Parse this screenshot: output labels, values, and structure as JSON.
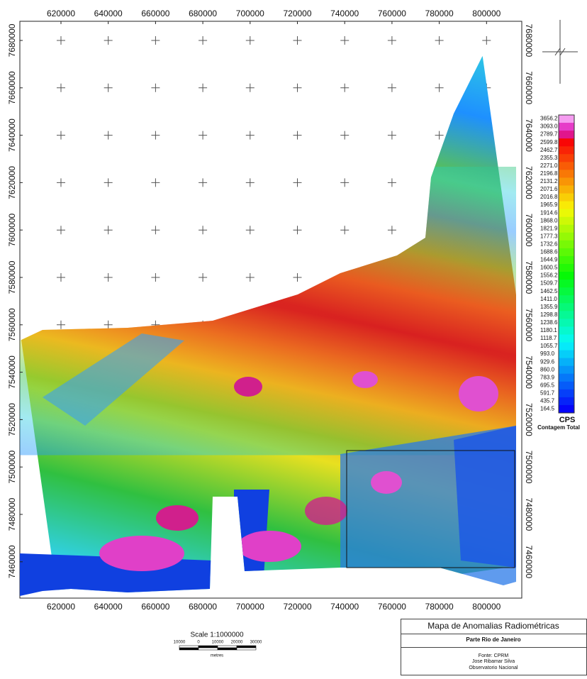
{
  "map": {
    "xlim": [
      602610,
      814900
    ],
    "ylim": [
      7444670,
      7688080
    ],
    "xticks": [
      620000,
      640000,
      660000,
      680000,
      700000,
      720000,
      740000,
      760000,
      780000,
      800000
    ],
    "yticks": [
      7460000,
      7480000,
      7500000,
      7520000,
      7540000,
      7560000,
      7580000,
      7600000,
      7620000,
      7640000,
      7660000,
      7680000
    ]
  },
  "legend": {
    "values": [
      "3656.2",
      "3093.0",
      "2789.7",
      "2599.8",
      "2462.7",
      "2355.3",
      "2271.0",
      "2196.8",
      "2131.2",
      "2071.6",
      "2016.8",
      "1965.9",
      "1914.6",
      "1868.0",
      "1821.9",
      "1777.3",
      "1732.6",
      "1688.6",
      "1644.9",
      "1600.5",
      "1556.2",
      "1509.7",
      "1462.5",
      "1411.0",
      "1355.9",
      "1298.8",
      "1238.6",
      "1180.1",
      "1118.7",
      "1055.7",
      "993.0",
      "929.6",
      "860.0",
      "783.9",
      "695.5",
      "591.7",
      "435.7",
      "164.5"
    ],
    "unit": "CPS",
    "label": "Contagem Total"
  },
  "scale": {
    "title": "Scale 1:1000000",
    "ticks": [
      "10000",
      "0",
      "10000",
      "20000",
      "30000"
    ],
    "unit": "metres"
  },
  "title_block": {
    "title": "Mapa de Anomalias Radiométricas",
    "subtitle": "Parte Rio de Janeiro",
    "credits": [
      "Fonte: CPRM",
      "Jose Ribamar Silva",
      "Observatorio Nacional"
    ]
  }
}
